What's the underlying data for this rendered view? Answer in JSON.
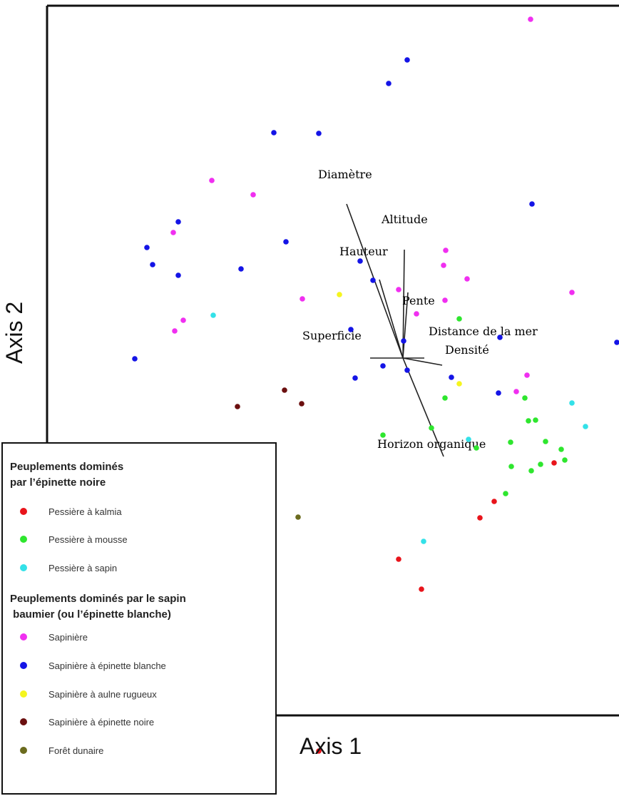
{
  "chart_data": {
    "type": "scatter",
    "xlabel": "Axis 1",
    "ylabel": "Axis 2",
    "legend": {
      "placement": "bottom-left",
      "groups": [
        {
          "heading": "Peuplements dominés\npar l’épinette noire",
          "items": [
            {
              "label": "Pessière à kalmia",
              "color": "#e8141b"
            },
            {
              "label": "Pessière à mousse",
              "color": "#2ee62e"
            },
            {
              "label": "Pessière à sapin",
              "color": "#33e1e8"
            }
          ]
        },
        {
          "heading": "Peuplements dominés par le sapin\n baumier (ou l’épinette blanche)",
          "items": [
            {
              "label": "Sapinière",
              "color": "#f02ff0"
            },
            {
              "label": "Sapinière à épinette blanche",
              "color": "#1414e6"
            },
            {
              "label": "Sapinière à aulne rugueux",
              "color": "#f5f51e"
            },
            {
              "label": "Sapinière à épinette noire",
              "color": "#6b0f0f"
            },
            {
              "label": "Forêt dunaire",
              "color": "#6b6b1e"
            }
          ]
        }
      ]
    },
    "origin": [
      565,
      502
    ],
    "vectors": [
      {
        "name": "Diamètre",
        "end": [
          486,
          286
        ]
      },
      {
        "name": "Altitude",
        "end": [
          567,
          350
        ]
      },
      {
        "name": "Hauteur",
        "end": [
          532,
          392
        ]
      },
      {
        "name": "Pente",
        "end": [
          572,
          410
        ]
      },
      {
        "name": "Superficie",
        "end": [
          519,
          502
        ]
      },
      {
        "name": "Distance de la mer",
        "end": [
          595,
          502
        ]
      },
      {
        "name": "Densité",
        "end": [
          620,
          512
        ]
      },
      {
        "name": "Horizon organique",
        "end": [
          622,
          640
        ]
      }
    ],
    "series": [
      {
        "group": "Pessière à kalmia",
        "points": [
          [
            777,
            649
          ],
          [
            693,
            703
          ],
          [
            673,
            726
          ],
          [
            559,
            784
          ],
          [
            591,
            826
          ],
          [
            447,
            1053
          ]
        ]
      },
      {
        "group": "Pessière à mousse",
        "points": [
          [
            644,
            447
          ],
          [
            624,
            558
          ],
          [
            736,
            558
          ],
          [
            741,
            590
          ],
          [
            751,
            589
          ],
          [
            605,
            600
          ],
          [
            537,
            610
          ],
          [
            765,
            619
          ],
          [
            787,
            630
          ],
          [
            716,
            620
          ],
          [
            668,
            628
          ],
          [
            792,
            645
          ],
          [
            717,
            654
          ],
          [
            758,
            651
          ],
          [
            745,
            660
          ],
          [
            709,
            692
          ]
        ]
      },
      {
        "group": "Pessière à sapin",
        "points": [
          [
            299,
            442
          ],
          [
            802,
            565
          ],
          [
            821,
            598
          ],
          [
            657,
            616
          ],
          [
            594,
            759
          ]
        ]
      },
      {
        "group": "Sapinière",
        "points": [
          [
            744,
            27
          ],
          [
            297,
            253
          ],
          [
            355,
            273
          ],
          [
            243,
            326
          ],
          [
            625,
            351
          ],
          [
            622,
            372
          ],
          [
            655,
            391
          ],
          [
            559,
            406
          ],
          [
            802,
            410
          ],
          [
            424,
            419
          ],
          [
            624,
            421
          ],
          [
            584,
            440
          ],
          [
            257,
            449
          ],
          [
            245,
            464
          ],
          [
            739,
            526
          ],
          [
            724,
            549
          ]
        ]
      },
      {
        "group": "Sapinière à épinette blanche",
        "points": [
          [
            571,
            84
          ],
          [
            545,
            117
          ],
          [
            384,
            186
          ],
          [
            447,
            187
          ],
          [
            746,
            286
          ],
          [
            250,
            311
          ],
          [
            401,
            339
          ],
          [
            206,
            347
          ],
          [
            214,
            371
          ],
          [
            505,
            366
          ],
          [
            338,
            377
          ],
          [
            250,
            386
          ],
          [
            523,
            393
          ],
          [
            492,
            462
          ],
          [
            701,
            473
          ],
          [
            566,
            478
          ],
          [
            865,
            480
          ],
          [
            189,
            503
          ],
          [
            537,
            513
          ],
          [
            571,
            519
          ],
          [
            633,
            529
          ],
          [
            498,
            530
          ],
          [
            699,
            551
          ]
        ]
      },
      {
        "group": "Sapinière à aulne rugueux",
        "points": [
          [
            476,
            413
          ],
          [
            644,
            538
          ]
        ]
      },
      {
        "group": "Sapinière à épinette noire",
        "points": [
          [
            399,
            547
          ],
          [
            333,
            570
          ],
          [
            423,
            566
          ]
        ]
      },
      {
        "group": "Forêt dunaire",
        "points": [
          [
            418,
            725
          ]
        ]
      }
    ]
  }
}
